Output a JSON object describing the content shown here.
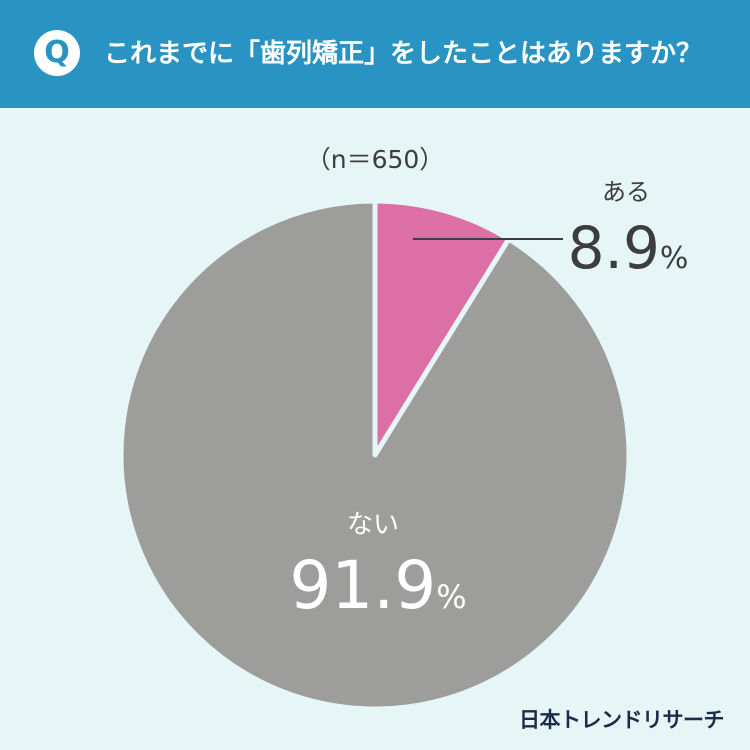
{
  "header": {
    "badge": "Q",
    "question": "これまでに「歯列矯正」をしたことはありますか？"
  },
  "sample_size": "（n＝650）",
  "brand": "日本トレンドリサーチ",
  "colors": {
    "header_bg": "#2993c3",
    "page_bg": "#e6f6f7",
    "yes": "#dc6fa5",
    "no": "#9d9d9c"
  },
  "chart_data": {
    "type": "pie",
    "slices": [
      {
        "label": "ある",
        "value": 8.9,
        "display": "8.9",
        "unit": "%",
        "color": "#dc6fa5"
      },
      {
        "label": "ない",
        "value": 91.9,
        "display": "91.9",
        "unit": "%",
        "color": "#9d9d9c"
      }
    ],
    "title": "これまでに「歯列矯正」をしたことはありますか？",
    "n": 650
  }
}
